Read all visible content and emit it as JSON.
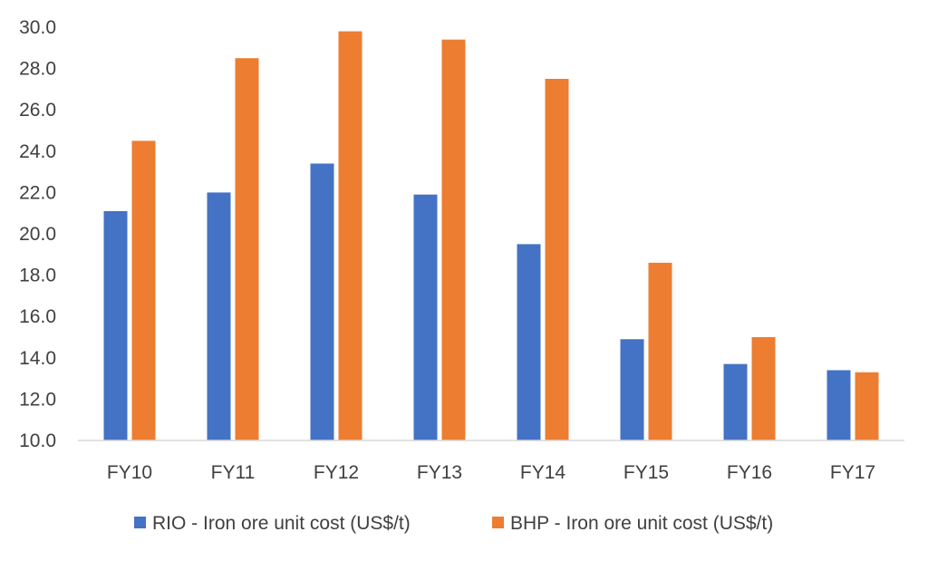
{
  "chart_data": {
    "type": "bar",
    "categories": [
      "FY10",
      "FY11",
      "FY12",
      "FY13",
      "FY14",
      "FY15",
      "FY16",
      "FY17"
    ],
    "series": [
      {
        "name": "RIO - Iron ore unit cost (US$/t)",
        "color": "#4472C4",
        "values": [
          21.1,
          22.0,
          23.4,
          21.9,
          19.5,
          14.9,
          13.7,
          13.4
        ]
      },
      {
        "name": "BHP - Iron ore unit cost (US$/t)",
        "color": "#ED7D31",
        "values": [
          24.5,
          28.5,
          29.8,
          29.4,
          27.5,
          18.6,
          15.0,
          13.3
        ]
      }
    ],
    "y_ticks": [
      "10.0",
      "12.0",
      "14.0",
      "16.0",
      "18.0",
      "20.0",
      "22.0",
      "24.0",
      "26.0",
      "28.0",
      "30.0"
    ],
    "ylim": [
      10,
      30
    ],
    "title": "",
    "xlabel": "",
    "ylabel": "",
    "legend_position": "bottom",
    "grid": false
  }
}
